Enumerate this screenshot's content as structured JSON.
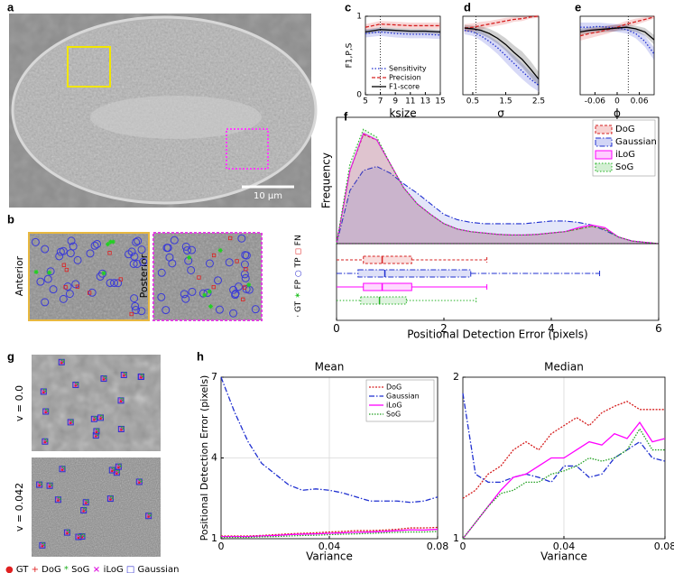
{
  "panel_labels": [
    "a",
    "b",
    "c",
    "d",
    "e",
    "f",
    "g",
    "h"
  ],
  "panel_a": {
    "scale_bar": "10 μm"
  },
  "panel_b": {
    "regions": [
      "Anterior",
      "Posterior"
    ],
    "legend": [
      "GT",
      "FP",
      "TP",
      "FN"
    ]
  },
  "panel_g": {
    "rows": [
      "v = 0.0",
      "v = 0.042"
    ],
    "legend": [
      "GT",
      "DoG",
      "SoG",
      "iLoG",
      "Gaussian"
    ]
  },
  "chart_data": [
    {
      "type": "line",
      "y_label": "F1,P,S",
      "x_label": "ksize",
      "x": [
        5,
        7,
        9,
        11,
        13,
        15
      ],
      "xlim": [
        5,
        15
      ],
      "xticks": [
        5,
        7,
        9,
        11,
        13,
        15
      ],
      "ylim": [
        0,
        1
      ],
      "yticks": [
        0,
        1
      ],
      "vline": 7,
      "legend": "lower right",
      "series": [
        {
          "name": "Sensitivity",
          "color": "#1f2fd0",
          "dash": "1.5,2",
          "values": [
            0.78,
            0.8,
            0.78,
            0.77,
            0.77,
            0.76
          ],
          "spread": [
            0.05,
            0.05,
            0.05,
            0.05,
            0.05,
            0.05
          ]
        },
        {
          "name": "Precision",
          "color": "#d62020",
          "dash": "4,2",
          "values": [
            0.86,
            0.9,
            0.89,
            0.88,
            0.88,
            0.88
          ],
          "spread": [
            0.04,
            0.04,
            0.04,
            0.04,
            0.04,
            0.04
          ]
        },
        {
          "name": "F1-score",
          "color": "#000000",
          "dash": "none",
          "values": [
            0.8,
            0.83,
            0.82,
            0.81,
            0.81,
            0.8
          ],
          "spread": [
            0.03,
            0.03,
            0.03,
            0.03,
            0.03,
            0.03
          ]
        }
      ]
    },
    {
      "type": "line",
      "x_label": "σ",
      "x": [
        0.25,
        0.5,
        0.75,
        1,
        1.25,
        1.5,
        1.75,
        2,
        2.25,
        2.5
      ],
      "xlim": [
        0.2,
        2.5
      ],
      "xticks": [
        0.5,
        1.5,
        2.5
      ],
      "ylim": [
        0,
        1
      ],
      "vline": 0.6,
      "series": [
        {
          "color": "#1f2fd0",
          "dash": "1.5,2",
          "values": [
            0.82,
            0.8,
            0.75,
            0.68,
            0.6,
            0.5,
            0.4,
            0.3,
            0.2,
            0.12
          ],
          "spread": [
            0.05,
            0.05,
            0.06,
            0.07,
            0.08,
            0.09,
            0.1,
            0.1,
            0.09,
            0.08
          ]
        },
        {
          "color": "#d62020",
          "dash": "4,2",
          "values": [
            0.85,
            0.86,
            0.88,
            0.9,
            0.92,
            0.94,
            0.96,
            0.97,
            0.99,
            1.0
          ],
          "spread": [
            0.05,
            0.05,
            0.05,
            0.04,
            0.04,
            0.04,
            0.03,
            0.03,
            0.02,
            0.02
          ]
        },
        {
          "color": "#000000",
          "dash": "none",
          "values": [
            0.85,
            0.84,
            0.82,
            0.78,
            0.72,
            0.64,
            0.54,
            0.45,
            0.33,
            0.2
          ],
          "spread": [
            0.04,
            0.04,
            0.05,
            0.06,
            0.07,
            0.08,
            0.09,
            0.1,
            0.1,
            0.09
          ]
        }
      ]
    },
    {
      "type": "line",
      "x_label": "ϕ",
      "x": [
        -0.1,
        -0.075,
        -0.05,
        -0.025,
        0,
        0.025,
        0.05,
        0.075,
        0.1
      ],
      "xlim": [
        -0.1,
        0.1
      ],
      "xticks": [
        -0.06,
        0,
        0.06
      ],
      "ylim": [
        0,
        1
      ],
      "vline": 0.03,
      "series": [
        {
          "color": "#1f2fd0",
          "dash": "1.5,2",
          "values": [
            0.86,
            0.86,
            0.87,
            0.86,
            0.85,
            0.83,
            0.78,
            0.68,
            0.52
          ],
          "spread": [
            0.06,
            0.06,
            0.05,
            0.05,
            0.05,
            0.05,
            0.06,
            0.07,
            0.08
          ]
        },
        {
          "color": "#d62020",
          "dash": "4,2",
          "values": [
            0.75,
            0.78,
            0.8,
            0.83,
            0.86,
            0.9,
            0.93,
            0.96,
            0.99
          ],
          "spread": [
            0.06,
            0.06,
            0.05,
            0.05,
            0.04,
            0.04,
            0.04,
            0.03,
            0.02
          ]
        },
        {
          "color": "#000000",
          "dash": "none",
          "values": [
            0.8,
            0.82,
            0.83,
            0.84,
            0.85,
            0.86,
            0.84,
            0.8,
            0.7
          ],
          "spread": [
            0.04,
            0.04,
            0.04,
            0.04,
            0.04,
            0.04,
            0.04,
            0.05,
            0.06
          ]
        }
      ]
    },
    {
      "type": "density",
      "y_label": "Frequency",
      "x_label": "Positional Detection Error (pixels)",
      "x": [
        0,
        0.25,
        0.5,
        0.75,
        1,
        1.25,
        1.5,
        1.75,
        2,
        2.25,
        2.5,
        2.75,
        3,
        3.25,
        3.5,
        3.75,
        4,
        4.25,
        4.5,
        4.75,
        5,
        5.25,
        5.5,
        5.75,
        6
      ],
      "xlim": [
        0,
        6
      ],
      "xticks": [
        0,
        2,
        4,
        6
      ],
      "ylim": [
        0,
        0.95
      ],
      "legend": "upper right",
      "series": [
        {
          "name": "DoG",
          "color": "#d62020",
          "dash": "3,2",
          "values": [
            0,
            0.55,
            0.82,
            0.78,
            0.6,
            0.42,
            0.3,
            0.22,
            0.15,
            0.11,
            0.09,
            0.08,
            0.07,
            0.065,
            0.065,
            0.07,
            0.08,
            0.09,
            0.11,
            0.13,
            0.11,
            0.05,
            0.02,
            0.01,
            0
          ],
          "box": {
            "whislo": 0,
            "q1": 0.5,
            "med": 0.85,
            "q3": 1.4,
            "whishi": 2.8
          }
        },
        {
          "name": "Gaussian",
          "color": "#1f2fd0",
          "dash": "6,2,1.5,2",
          "values": [
            0,
            0.4,
            0.55,
            0.58,
            0.53,
            0.45,
            0.38,
            0.3,
            0.22,
            0.18,
            0.16,
            0.15,
            0.15,
            0.15,
            0.15,
            0.16,
            0.17,
            0.17,
            0.16,
            0.14,
            0.1,
            0.05,
            0.02,
            0.01,
            0
          ],
          "box": {
            "whislo": 0,
            "q1": 0.4,
            "med": 0.9,
            "q3": 2.5,
            "whishi": 4.9
          }
        },
        {
          "name": "iLoG",
          "color": "#ff00ff",
          "dash": "none",
          "values": [
            0,
            0.55,
            0.83,
            0.78,
            0.6,
            0.42,
            0.3,
            0.22,
            0.15,
            0.11,
            0.09,
            0.08,
            0.07,
            0.065,
            0.065,
            0.07,
            0.08,
            0.09,
            0.12,
            0.14,
            0.12,
            0.05,
            0.02,
            0.01,
            0
          ],
          "box": {
            "whislo": 0,
            "q1": 0.5,
            "med": 0.85,
            "q3": 1.4,
            "whishi": 2.8
          }
        },
        {
          "name": "SoG",
          "color": "#22b022",
          "dash": "1.5,2",
          "values": [
            0,
            0.6,
            0.86,
            0.8,
            0.6,
            0.42,
            0.3,
            0.22,
            0.15,
            0.11,
            0.09,
            0.08,
            0.07,
            0.065,
            0.065,
            0.07,
            0.08,
            0.09,
            0.11,
            0.13,
            0.11,
            0.05,
            0.02,
            0.01,
            0
          ],
          "box": {
            "whislo": 0,
            "q1": 0.45,
            "med": 0.8,
            "q3": 1.3,
            "whishi": 2.6
          }
        }
      ]
    },
    {
      "type": "line",
      "title": "Mean",
      "x_label": "Variance",
      "y_label": "Positional Detection Error (pixels)",
      "x": [
        0,
        0.005,
        0.01,
        0.015,
        0.02,
        0.025,
        0.03,
        0.035,
        0.04,
        0.045,
        0.05,
        0.055,
        0.06,
        0.065,
        0.07,
        0.075,
        0.08
      ],
      "xlim": [
        0,
        0.08
      ],
      "xticks": [
        0,
        0.04,
        0.08
      ],
      "ylim": [
        1,
        7
      ],
      "yticks": [
        1,
        4,
        7
      ],
      "grid": true,
      "legend": "upper right",
      "series": [
        {
          "name": "DoG",
          "color": "#d62020",
          "dash": "2,1.5",
          "values": [
            1.1,
            1.1,
            1.1,
            1.12,
            1.15,
            1.18,
            1.2,
            1.22,
            1.25,
            1.27,
            1.3,
            1.3,
            1.32,
            1.35,
            1.4,
            1.4,
            1.42
          ]
        },
        {
          "name": "Gaussian",
          "color": "#1f2fd0",
          "dash": "6,2,1.5,2",
          "values": [
            7,
            5.7,
            4.6,
            3.8,
            3.4,
            3.0,
            2.8,
            2.85,
            2.8,
            2.7,
            2.55,
            2.4,
            2.4,
            2.4,
            2.35,
            2.4,
            2.55
          ]
        },
        {
          "name": "iLoG",
          "color": "#ff00ff",
          "dash": "none",
          "values": [
            1.08,
            1.08,
            1.08,
            1.1,
            1.12,
            1.15,
            1.17,
            1.18,
            1.2,
            1.22,
            1.24,
            1.25,
            1.27,
            1.3,
            1.33,
            1.32,
            1.35
          ]
        },
        {
          "name": "SoG",
          "color": "#22a022",
          "dash": "1.5,1.5",
          "values": [
            1.05,
            1.05,
            1.05,
            1.07,
            1.08,
            1.1,
            1.12,
            1.13,
            1.15,
            1.17,
            1.18,
            1.2,
            1.22,
            1.24,
            1.25,
            1.25,
            1.27
          ]
        }
      ]
    },
    {
      "type": "line",
      "title": "Median",
      "x_label": "Variance",
      "x": [
        0,
        0.005,
        0.01,
        0.015,
        0.02,
        0.025,
        0.03,
        0.035,
        0.04,
        0.045,
        0.05,
        0.055,
        0.06,
        0.065,
        0.07,
        0.075,
        0.08
      ],
      "xlim": [
        0,
        0.08
      ],
      "xticks": [
        0,
        0.04,
        0.08
      ],
      "ylim": [
        1,
        2
      ],
      "yticks": [
        1,
        2
      ],
      "grid": true,
      "series": [
        {
          "color": "#d62020",
          "dash": "2,1.5",
          "values": [
            1.25,
            1.3,
            1.4,
            1.45,
            1.55,
            1.6,
            1.55,
            1.65,
            1.7,
            1.75,
            1.7,
            1.78,
            1.82,
            1.85,
            1.8,
            1.8,
            1.8
          ]
        },
        {
          "color": "#1f2fd0",
          "dash": "6,2,1.5,2",
          "values": [
            1.9,
            1.4,
            1.35,
            1.35,
            1.38,
            1.4,
            1.38,
            1.35,
            1.45,
            1.45,
            1.38,
            1.4,
            1.5,
            1.55,
            1.6,
            1.5,
            1.48
          ]
        },
        {
          "color": "#ff00ff",
          "dash": "none",
          "values": [
            1.0,
            1.1,
            1.2,
            1.3,
            1.38,
            1.4,
            1.45,
            1.5,
            1.5,
            1.55,
            1.6,
            1.58,
            1.65,
            1.62,
            1.72,
            1.6,
            1.62
          ]
        },
        {
          "color": "#22a022",
          "dash": "1.5,1.5",
          "values": [
            1.0,
            1.1,
            1.2,
            1.28,
            1.3,
            1.35,
            1.35,
            1.4,
            1.42,
            1.45,
            1.5,
            1.48,
            1.5,
            1.55,
            1.68,
            1.55,
            1.55
          ]
        }
      ]
    }
  ]
}
